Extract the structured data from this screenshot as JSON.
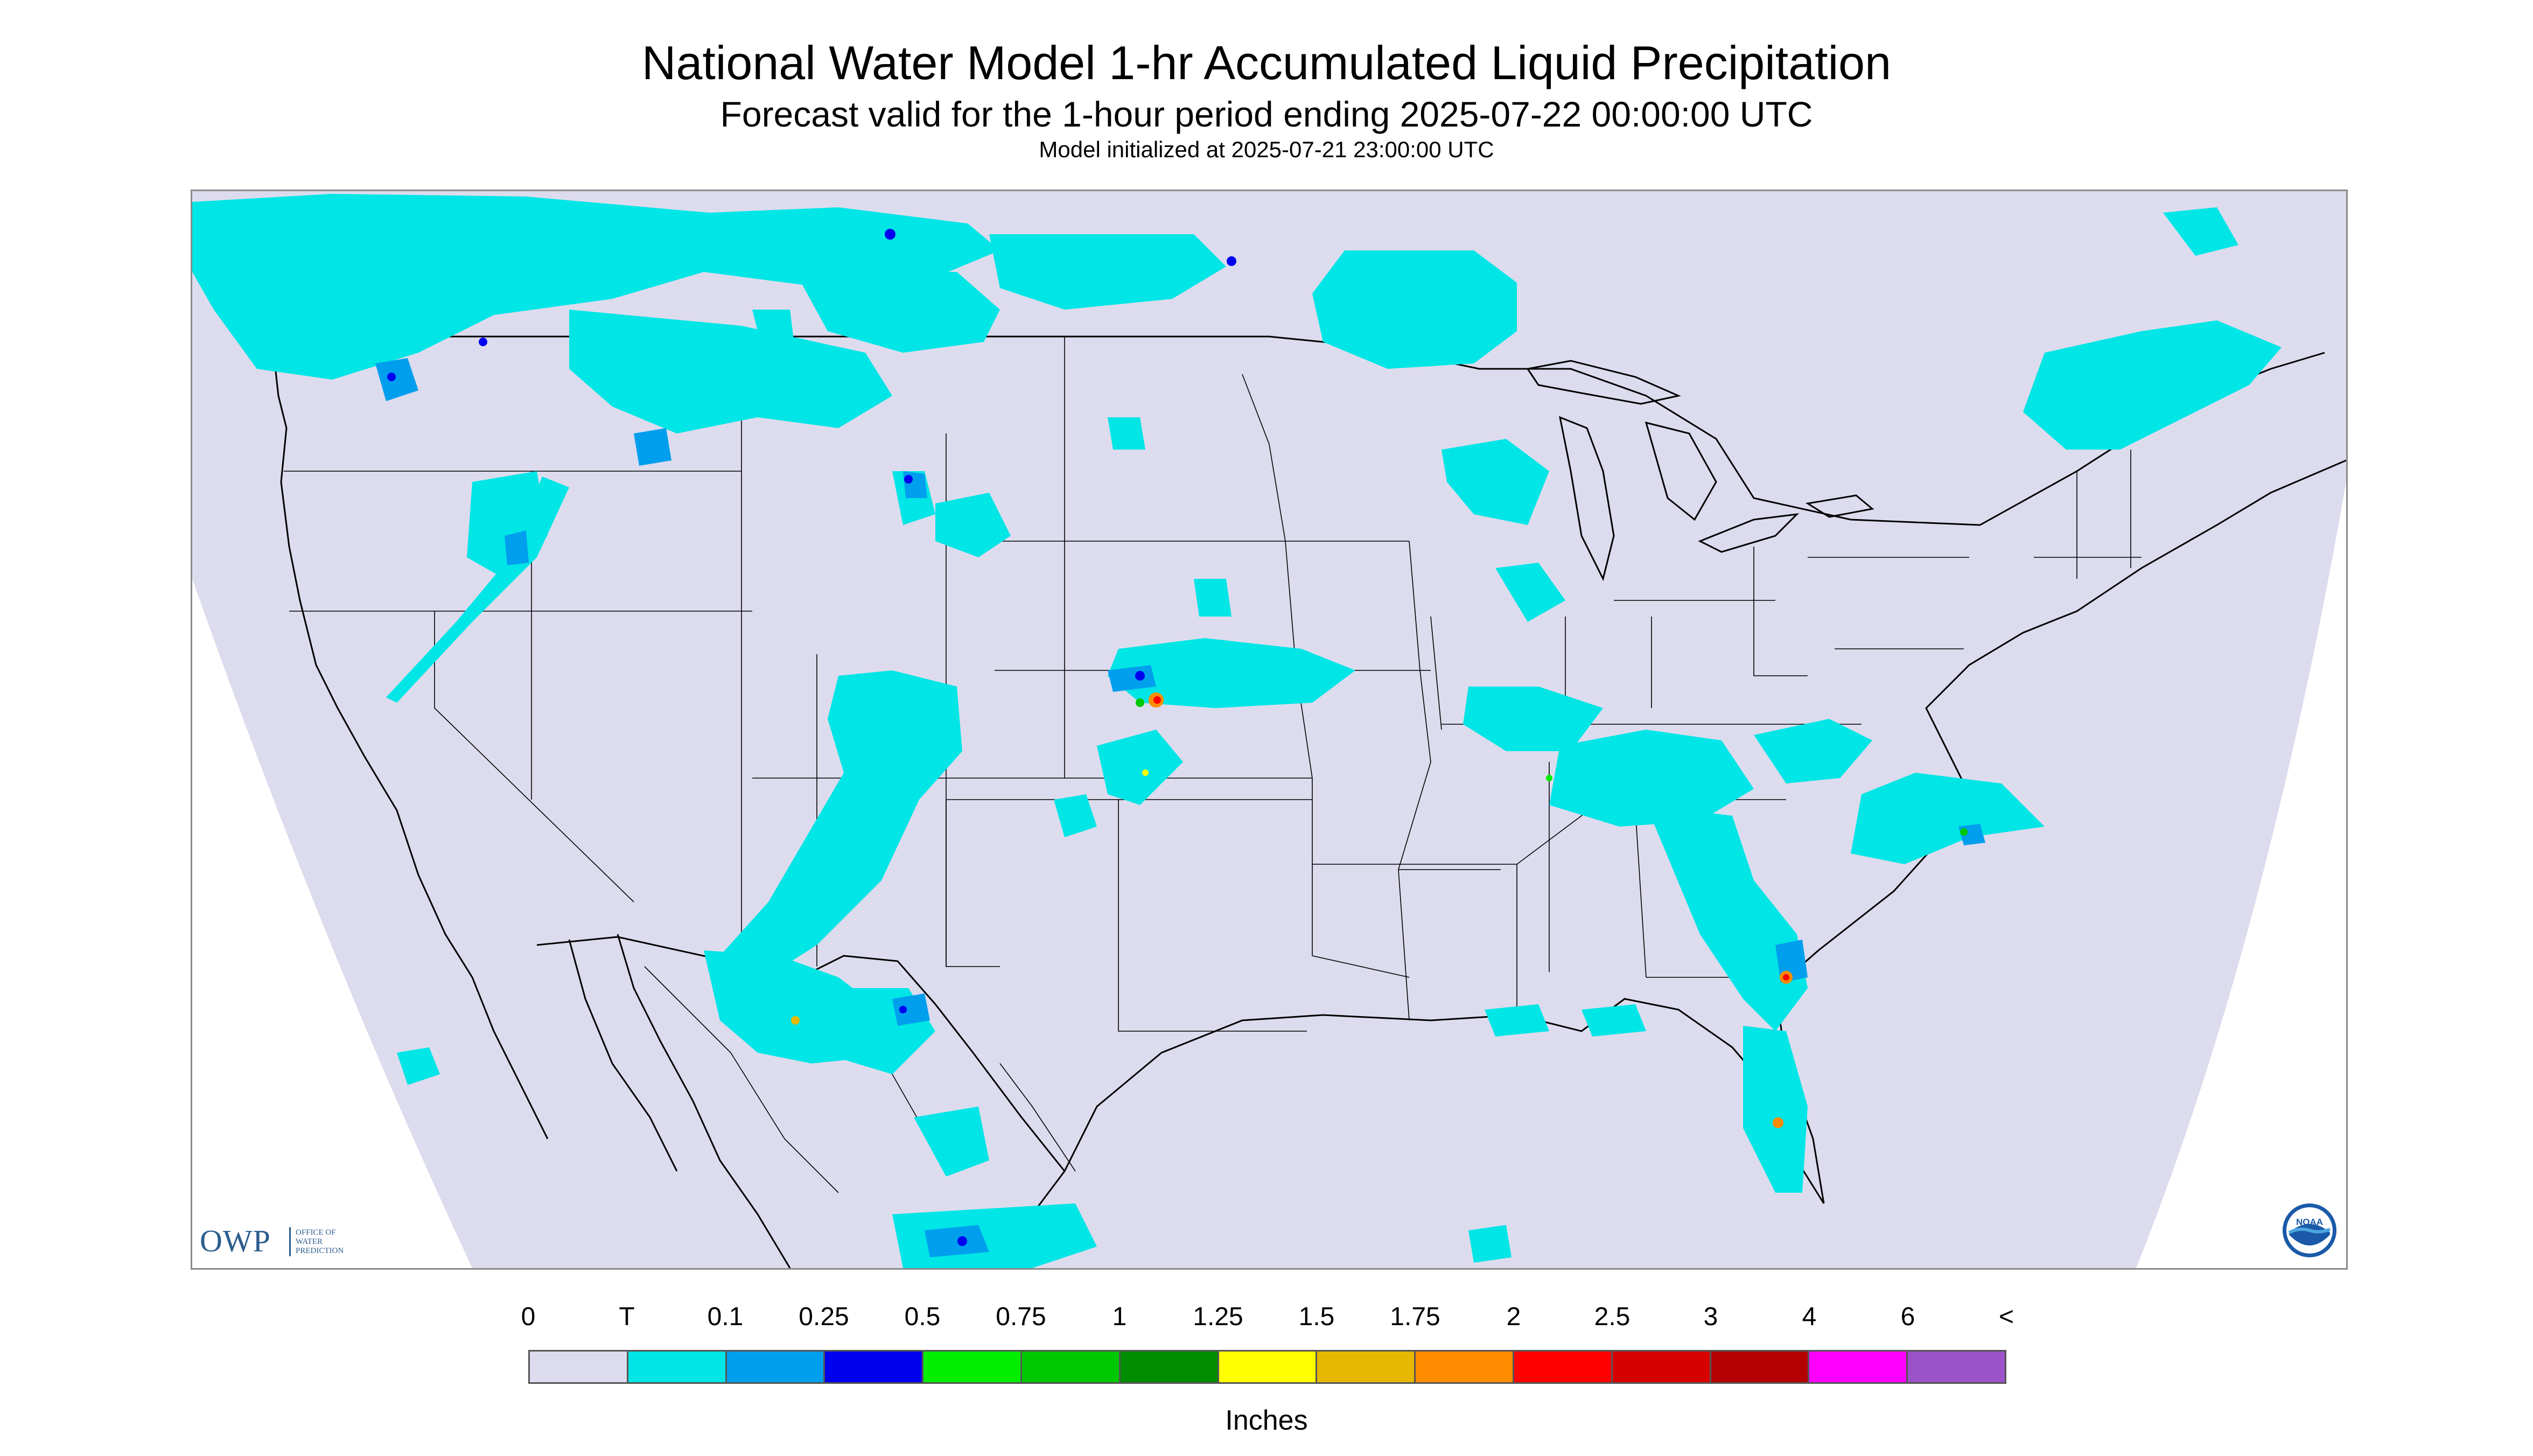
{
  "header": {
    "title": "National Water Model 1-hr Accumulated Liquid Precipitation",
    "subtitle": "Forecast valid for the 1-hour period ending 2025-07-22 00:00:00 UTC",
    "init": "Model initialized at 2025-07-21 23:00:00 UTC"
  },
  "map": {
    "region": "CONUS",
    "background_color": "#dcdcee",
    "outside_domain_color": "#ffffff",
    "boundary_color": "#000000"
  },
  "logos": {
    "owp_letters": "OWP",
    "owp_line1": "OFFICE OF",
    "owp_line2": "WATER",
    "owp_line3": "PREDICTION",
    "noaa": "NOAA"
  },
  "legend": {
    "tick_labels": [
      "0",
      "T",
      "0.1",
      "0.25",
      "0.5",
      "0.75",
      "1",
      "1.25",
      "1.5",
      "1.75",
      "2",
      "2.5",
      "3",
      "4",
      "6",
      "<"
    ],
    "colors": [
      "#dcdcee",
      "#00e5e5",
      "#009fee",
      "#0000ee",
      "#00ee00",
      "#00c800",
      "#008c00",
      "#ffff00",
      "#e6b800",
      "#ff8c00",
      "#ff0000",
      "#d70000",
      "#b40000",
      "#ff00ff",
      "#9c52c8"
    ],
    "unit": "Inches"
  }
}
